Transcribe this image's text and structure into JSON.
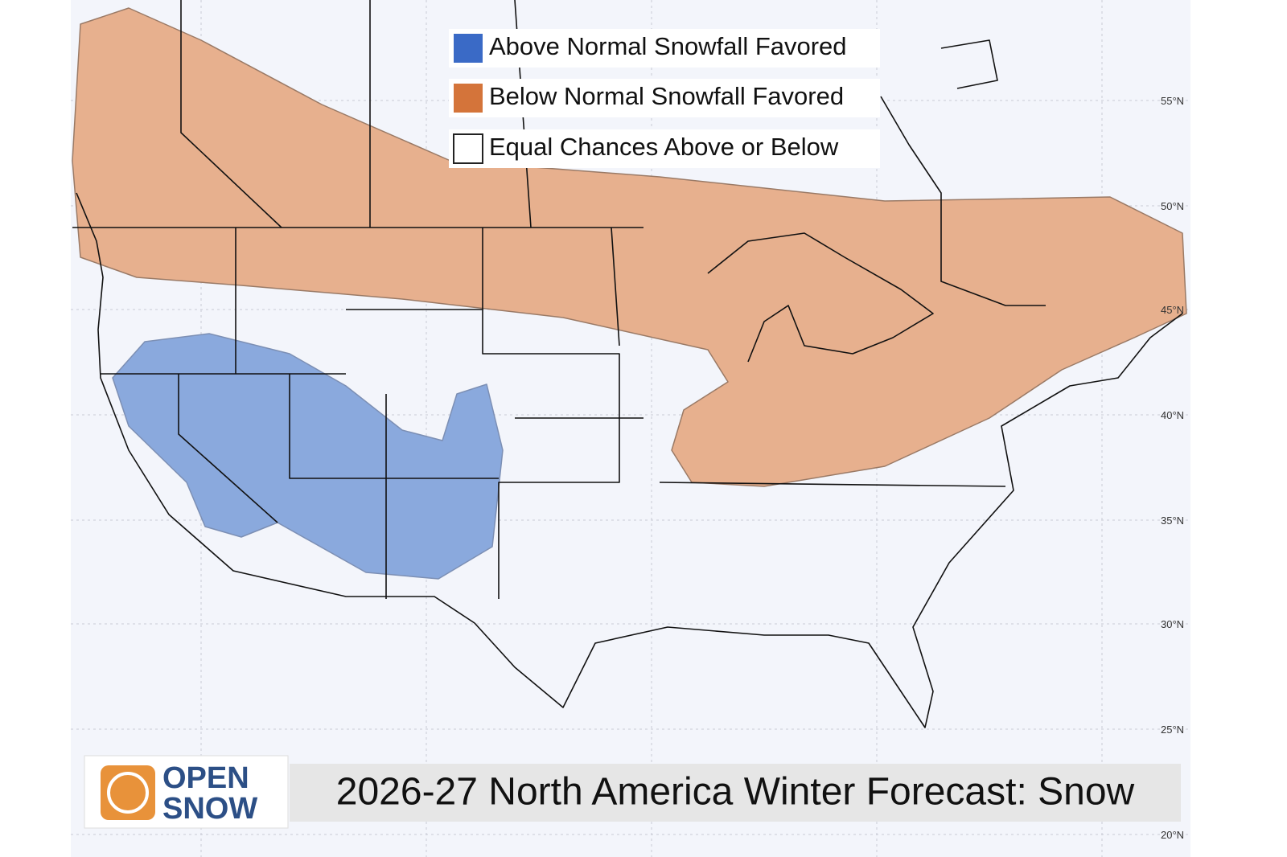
{
  "legend": [
    {
      "label": "Above Normal Snowfall Favored",
      "color": "#3a6ac6"
    },
    {
      "label": "Below Normal Snowfall Favored",
      "color": "#d4743a"
    },
    {
      "label": "Equal Chances Above or Below",
      "color": "#ffffff"
    }
  ],
  "latitude_labels": [
    "55°N",
    "50°N",
    "45°N",
    "40°N",
    "35°N",
    "30°N",
    "25°N",
    "20°N"
  ],
  "logo": {
    "line1": "OPEN",
    "line2": "SNOW"
  },
  "title": "2026-27 North America Winter Forecast: Snow"
}
